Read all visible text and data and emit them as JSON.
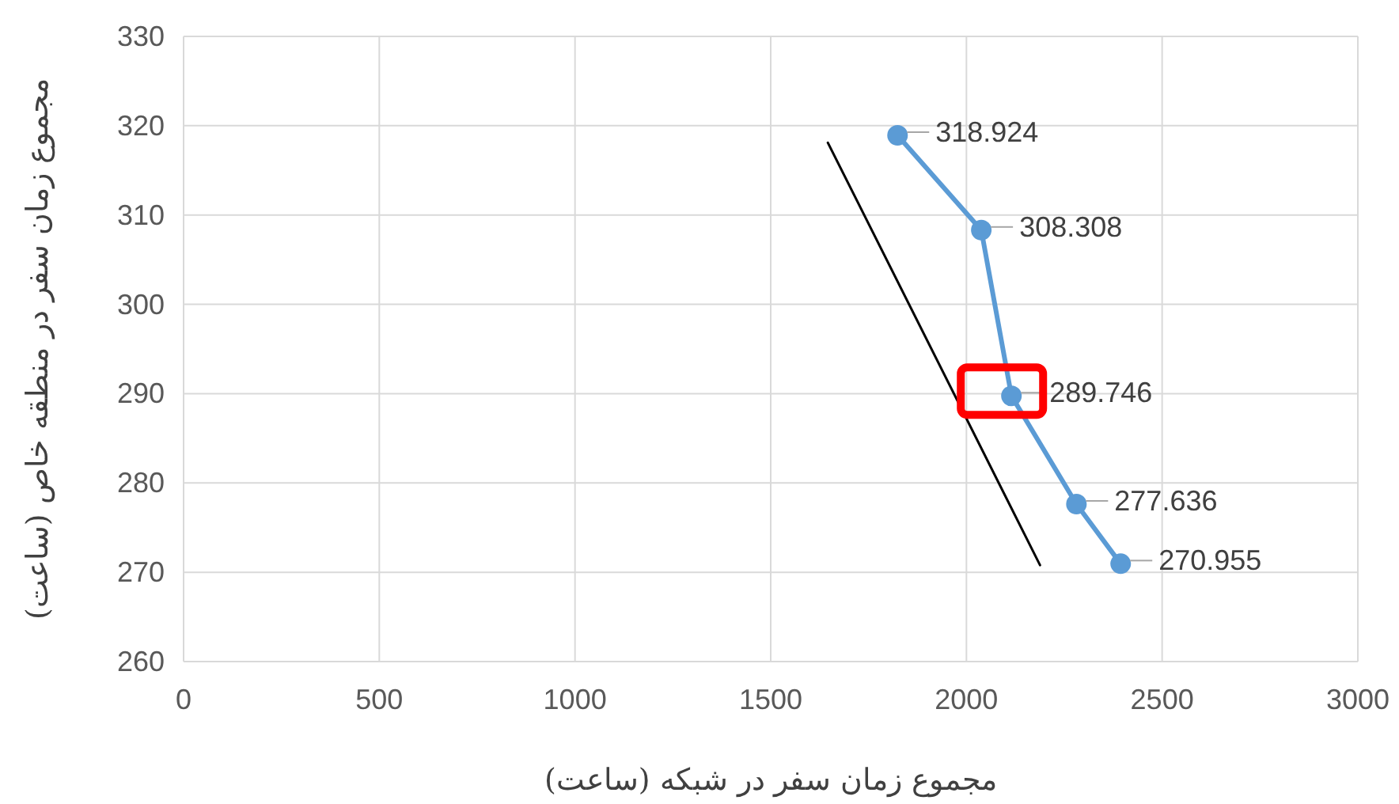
{
  "chart_data": {
    "type": "line",
    "xlabel": "مجموع زمان سفر در شبکه (ساعت)",
    "ylabel": "مجموع زمان سفر در منطقه خاص (ساعت)",
    "xlim": [
      0,
      3000
    ],
    "ylim": [
      260,
      330
    ],
    "xticks": [
      0,
      500,
      1000,
      1500,
      2000,
      2500,
      3000
    ],
    "yticks": [
      260,
      270,
      280,
      290,
      300,
      310,
      320,
      330
    ],
    "grid": true,
    "series": [
      {
        "color": "#5b9bd5",
        "marker": "circle",
        "x": [
          1824,
          2038,
          2115,
          2281,
          2394
        ],
        "values": [
          318.924,
          308.308,
          289.746,
          277.636,
          270.955
        ],
        "value_labels": [
          "318.924",
          "308.308",
          "289.746",
          "277.636",
          "270.955"
        ]
      },
      {
        "type": "line",
        "color": "#000000",
        "marker": "none",
        "x": [
          1646,
          2188
        ],
        "values": [
          318.1,
          270.8
        ]
      }
    ]
  }
}
